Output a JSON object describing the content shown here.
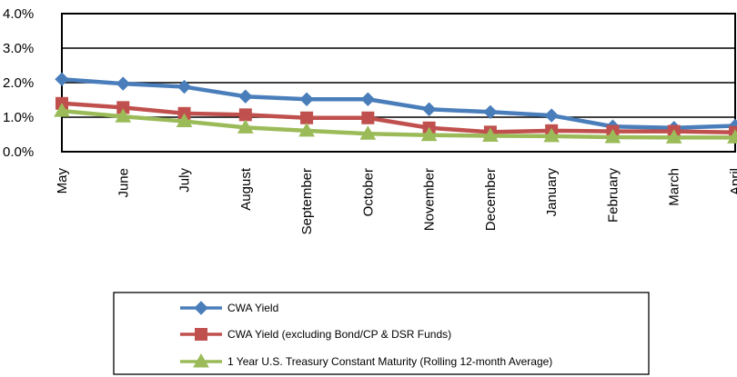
{
  "chart_data": {
    "type": "line",
    "title": "",
    "xlabel": "",
    "ylabel": "",
    "categories": [
      "May",
      "June",
      "July",
      "August",
      "September",
      "October",
      "November",
      "December",
      "January",
      "February",
      "March",
      "April"
    ],
    "ylim": [
      0,
      4
    ],
    "yticks": [
      "0.0%",
      "1.0%",
      "2.0%",
      "3.0%",
      "4.0%"
    ],
    "grid": "horizontal",
    "legend": "bottom",
    "series": [
      {
        "name": "CWA Yield",
        "color": "#4a7ebb",
        "marker": "diamond",
        "values": [
          2.1,
          1.97,
          1.88,
          1.6,
          1.52,
          1.52,
          1.23,
          1.15,
          1.05,
          0.73,
          0.69,
          0.75
        ]
      },
      {
        "name": "CWA Yield (excluding Bond/CP & DSR Funds)",
        "color": "#c0504d",
        "marker": "square",
        "values": [
          1.4,
          1.28,
          1.11,
          1.07,
          0.98,
          0.98,
          0.69,
          0.57,
          0.61,
          0.59,
          0.59,
          0.56
        ]
      },
      {
        "name": "1 Year U.S. Treasury Constant Maturity (Rolling 12-month Average)",
        "color": "#9bbb59",
        "marker": "triangle",
        "values": [
          1.18,
          1.02,
          0.88,
          0.7,
          0.61,
          0.52,
          0.48,
          0.46,
          0.45,
          0.42,
          0.41,
          0.41
        ]
      }
    ]
  }
}
